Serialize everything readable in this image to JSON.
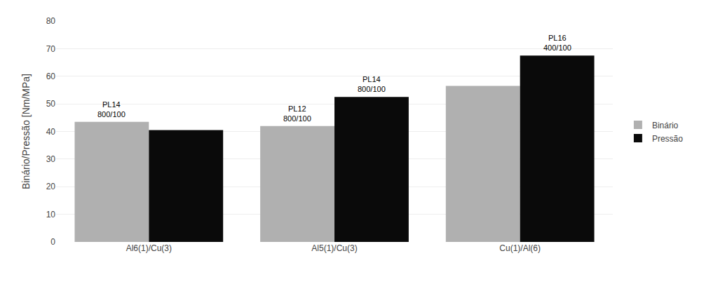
{
  "chart_data": {
    "type": "bar",
    "categories": [
      "Al6(1)/Cu(3)",
      "Al5(1)/Cu(3)",
      "Cu(1)/Al(6)"
    ],
    "series": [
      {
        "name": "Binário",
        "color": "#b0b0b0",
        "values": [
          43.5,
          42.0,
          56.5
        ]
      },
      {
        "name": "Pressão",
        "color": "#0a0a0a",
        "values": [
          40.5,
          52.5,
          67.5
        ]
      }
    ],
    "ylabel": "Binário/Pressão [Nm/MPa]",
    "ylim": [
      0,
      80
    ],
    "yticks": [
      0,
      10,
      20,
      30,
      40,
      50,
      60,
      70,
      80
    ],
    "grid": true,
    "legend": "right",
    "annotations": [
      {
        "text": "PL14\n800/100",
        "category": "Al6(1)/Cu(3)",
        "series": "Binário"
      },
      {
        "text": "PL12\n800/100",
        "category": "Al5(1)/Cu(3)",
        "series": "Binário"
      },
      {
        "text": "PL14\n800/100",
        "category": "Al5(1)/Cu(3)",
        "series": "Pressão"
      },
      {
        "text": "PL16\n400/100",
        "category": "Cu(1)/Al(6)",
        "series": "Pressão"
      }
    ]
  }
}
